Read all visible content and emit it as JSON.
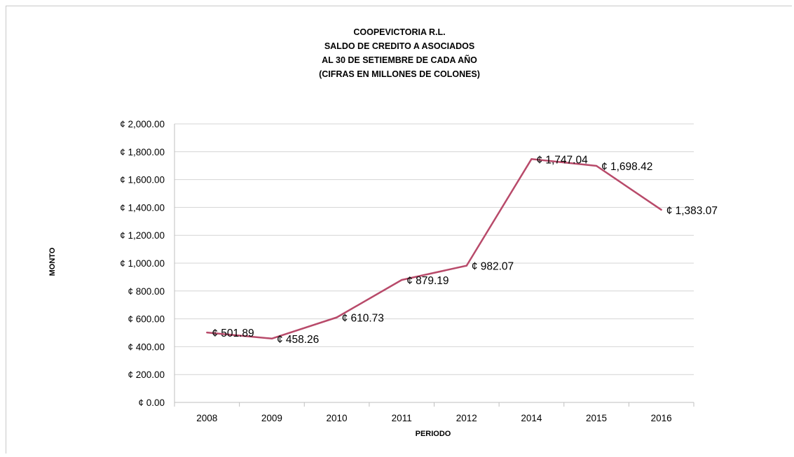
{
  "chart_data": {
    "type": "line",
    "title_lines": [
      "COOPEVICTORIA R.L.",
      "SALDO DE CREDITO  A ASOCIADOS",
      "AL 30 DE SETIEMBRE DE CADA AÑO",
      "(CIFRAS EN MILLONES DE COLONES)"
    ],
    "xlabel": "PERIODO",
    "ylabel": "MONTO",
    "categories": [
      "2008",
      "2009",
      "2010",
      "2011",
      "2012",
      "2014",
      "2015",
      "2016"
    ],
    "series": [
      {
        "values": [
          501.89,
          458.26,
          610.73,
          879.19,
          982.07,
          1747.04,
          1698.42,
          1383.07
        ],
        "data_labels": [
          "¢ 501.89",
          "¢ 458.26",
          "¢ 610.73",
          "¢ 879.19",
          "¢ 982.07",
          "¢ 1,747.04",
          "¢ 1,698.42",
          "¢ 1,383.07"
        ],
        "color": "#b84a6a"
      }
    ],
    "ylim": [
      0,
      2000
    ],
    "y_ticks": [
      0,
      200,
      400,
      600,
      800,
      1000,
      1200,
      1400,
      1600,
      1800,
      2000
    ],
    "y_tick_labels": [
      "¢ 0.00",
      "¢ 200.00",
      "¢ 400.00",
      "¢ 600.00",
      "¢ 800.00",
      "¢ 1,000.00",
      "¢ 1,200.00",
      "¢ 1,400.00",
      "¢ 1,600.00",
      "¢ 1,800.00",
      "¢ 2,000.00"
    ],
    "grid": true,
    "legend": "none"
  },
  "colors": {
    "line": "#b84a6a",
    "grid": "#d4d4d4",
    "axis": "#bfbfbf"
  }
}
